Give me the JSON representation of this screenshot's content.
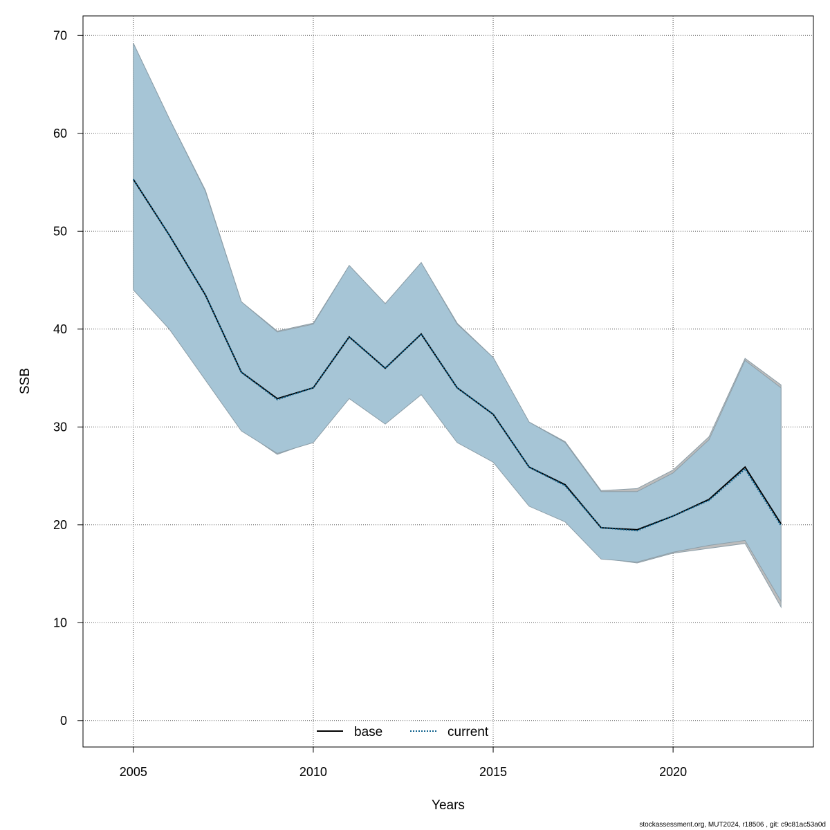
{
  "chart_data": {
    "type": "line",
    "xlabel": "Years",
    "ylabel": "SSB",
    "xlim": [
      2003.6,
      2023.9
    ],
    "ylim": [
      -2.7,
      72
    ],
    "x_ticks": [
      2005,
      2010,
      2015,
      2020
    ],
    "y_ticks": [
      0,
      10,
      20,
      30,
      40,
      50,
      60,
      70
    ],
    "grid": true,
    "legend_position": "bottom-center",
    "x": [
      2005,
      2006,
      2007,
      2008,
      2009,
      2010,
      2011,
      2012,
      2013,
      2014,
      2015,
      2016,
      2017,
      2018,
      2019,
      2020,
      2021,
      2022,
      2023
    ],
    "series": [
      {
        "name": "base",
        "color": "#000000",
        "line_style": "solid",
        "band_color": "#bdbdbd",
        "values": [
          55.3,
          49.6,
          43.5,
          35.6,
          32.9,
          34.0,
          39.2,
          36.0,
          39.5,
          34.0,
          31.3,
          25.9,
          24.1,
          19.7,
          19.5,
          20.9,
          22.6,
          25.9,
          20.1
        ],
        "lower": [
          44.2,
          40.0,
          34.9,
          29.7,
          27.2,
          28.5,
          33.0,
          30.4,
          33.4,
          28.5,
          26.5,
          22.0,
          20.4,
          16.6,
          16.1,
          17.1,
          17.6,
          18.1,
          11.6
        ],
        "upper": [
          69.2,
          61.5,
          54.2,
          42.8,
          39.8,
          40.6,
          46.5,
          42.6,
          46.8,
          40.6,
          37.1,
          30.5,
          28.5,
          23.5,
          23.7,
          25.6,
          29.0,
          37.0,
          34.3
        ]
      },
      {
        "name": "current",
        "color": "#0b5f8a",
        "line_style": "dotted",
        "band_color": "#a6c5d6",
        "values": [
          55.3,
          49.6,
          43.5,
          35.6,
          32.8,
          34.0,
          39.2,
          36.0,
          39.5,
          34.0,
          31.3,
          25.9,
          24.0,
          19.7,
          19.4,
          20.9,
          22.5,
          25.7,
          19.9
        ],
        "lower": [
          44.0,
          40.0,
          34.8,
          29.6,
          27.3,
          28.4,
          32.9,
          30.3,
          33.3,
          28.4,
          26.4,
          21.9,
          20.3,
          16.5,
          16.2,
          17.2,
          17.9,
          18.4,
          12.2
        ],
        "upper": [
          69.2,
          61.5,
          54.1,
          42.8,
          39.7,
          40.5,
          46.5,
          42.6,
          46.8,
          40.5,
          37.1,
          30.5,
          28.4,
          23.4,
          23.4,
          25.3,
          28.7,
          36.8,
          34.0
        ]
      }
    ]
  },
  "footer": {
    "text": "stockassessment.org, MUT2024, r18506 , git: c9c81ac53a0d"
  }
}
